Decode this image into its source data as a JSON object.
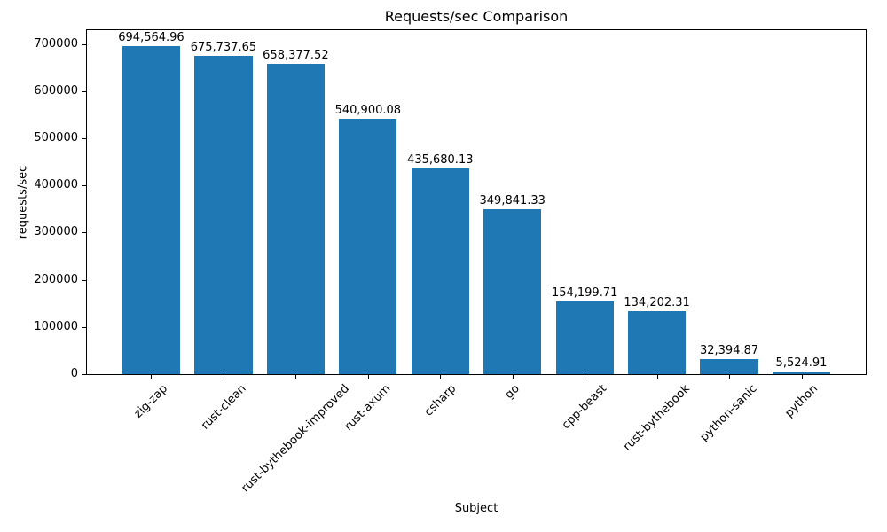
{
  "chart_data": {
    "type": "bar",
    "title": "Requests/sec Comparison",
    "xlabel": "Subject",
    "ylabel": "requests/sec",
    "categories": [
      "zig-zap",
      "rust-clean",
      "rust-bythebook-improved",
      "rust-axum",
      "csharp",
      "go",
      "cpp-beast",
      "rust-bythebook",
      "python-sanic",
      "python"
    ],
    "values": [
      694564.96,
      675737.65,
      658377.52,
      540900.08,
      435680.13,
      349841.33,
      154199.71,
      134202.31,
      32394.87,
      5524.91
    ],
    "value_labels": [
      "694,564.96",
      "675,737.65",
      "658,377.52",
      "540,900.08",
      "435,680.13",
      "349,841.33",
      "154,199.71",
      "134,202.31",
      "32,394.87",
      "5,524.91"
    ],
    "ylim": [
      0,
      729293
    ],
    "yticks": [
      0,
      100000,
      200000,
      300000,
      400000,
      500000,
      600000,
      700000
    ],
    "ytick_labels": [
      "0",
      "100000",
      "200000",
      "300000",
      "400000",
      "500000",
      "600000",
      "700000"
    ],
    "bar_color": "#1f77b4",
    "axis_color": "#000000",
    "background": "#ffffff",
    "grid": false,
    "legend": null
  }
}
